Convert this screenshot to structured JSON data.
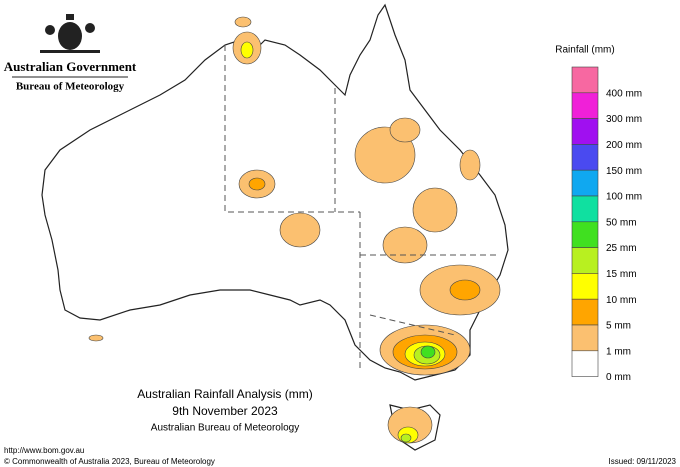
{
  "header": {
    "government": "Australian Government",
    "agency": "Bureau of Meteorology"
  },
  "legend": {
    "title": "Rainfall (mm)",
    "items": [
      {
        "label": "400 mm",
        "color": "#f768a1"
      },
      {
        "label": "300 mm",
        "color": "#f020d8"
      },
      {
        "label": "200 mm",
        "color": "#a010f0"
      },
      {
        "label": "150 mm",
        "color": "#4a4af0"
      },
      {
        "label": "100 mm",
        "color": "#10a8f0"
      },
      {
        "label": "50 mm",
        "color": "#10e0a0"
      },
      {
        "label": "25 mm",
        "color": "#40e020"
      },
      {
        "label": "15 mm",
        "color": "#b8f020"
      },
      {
        "label": "10 mm",
        "color": "#ffff00"
      },
      {
        "label": "5 mm",
        "color": "#ffa500"
      },
      {
        "label": "1 mm",
        "color": "#fbc070"
      },
      {
        "label": "0 mm",
        "color": "#ffffff"
      }
    ]
  },
  "caption": {
    "title": "Australian Rainfall Analysis (mm)",
    "date": "9th November 2023",
    "source": "Australian Bureau of Meteorology"
  },
  "footer": {
    "url": "http://www.bom.gov.au",
    "copyright": "© Commonwealth of Australia 2023, Bureau of Meteorology",
    "issued": "Issued: 09/11/2023"
  }
}
